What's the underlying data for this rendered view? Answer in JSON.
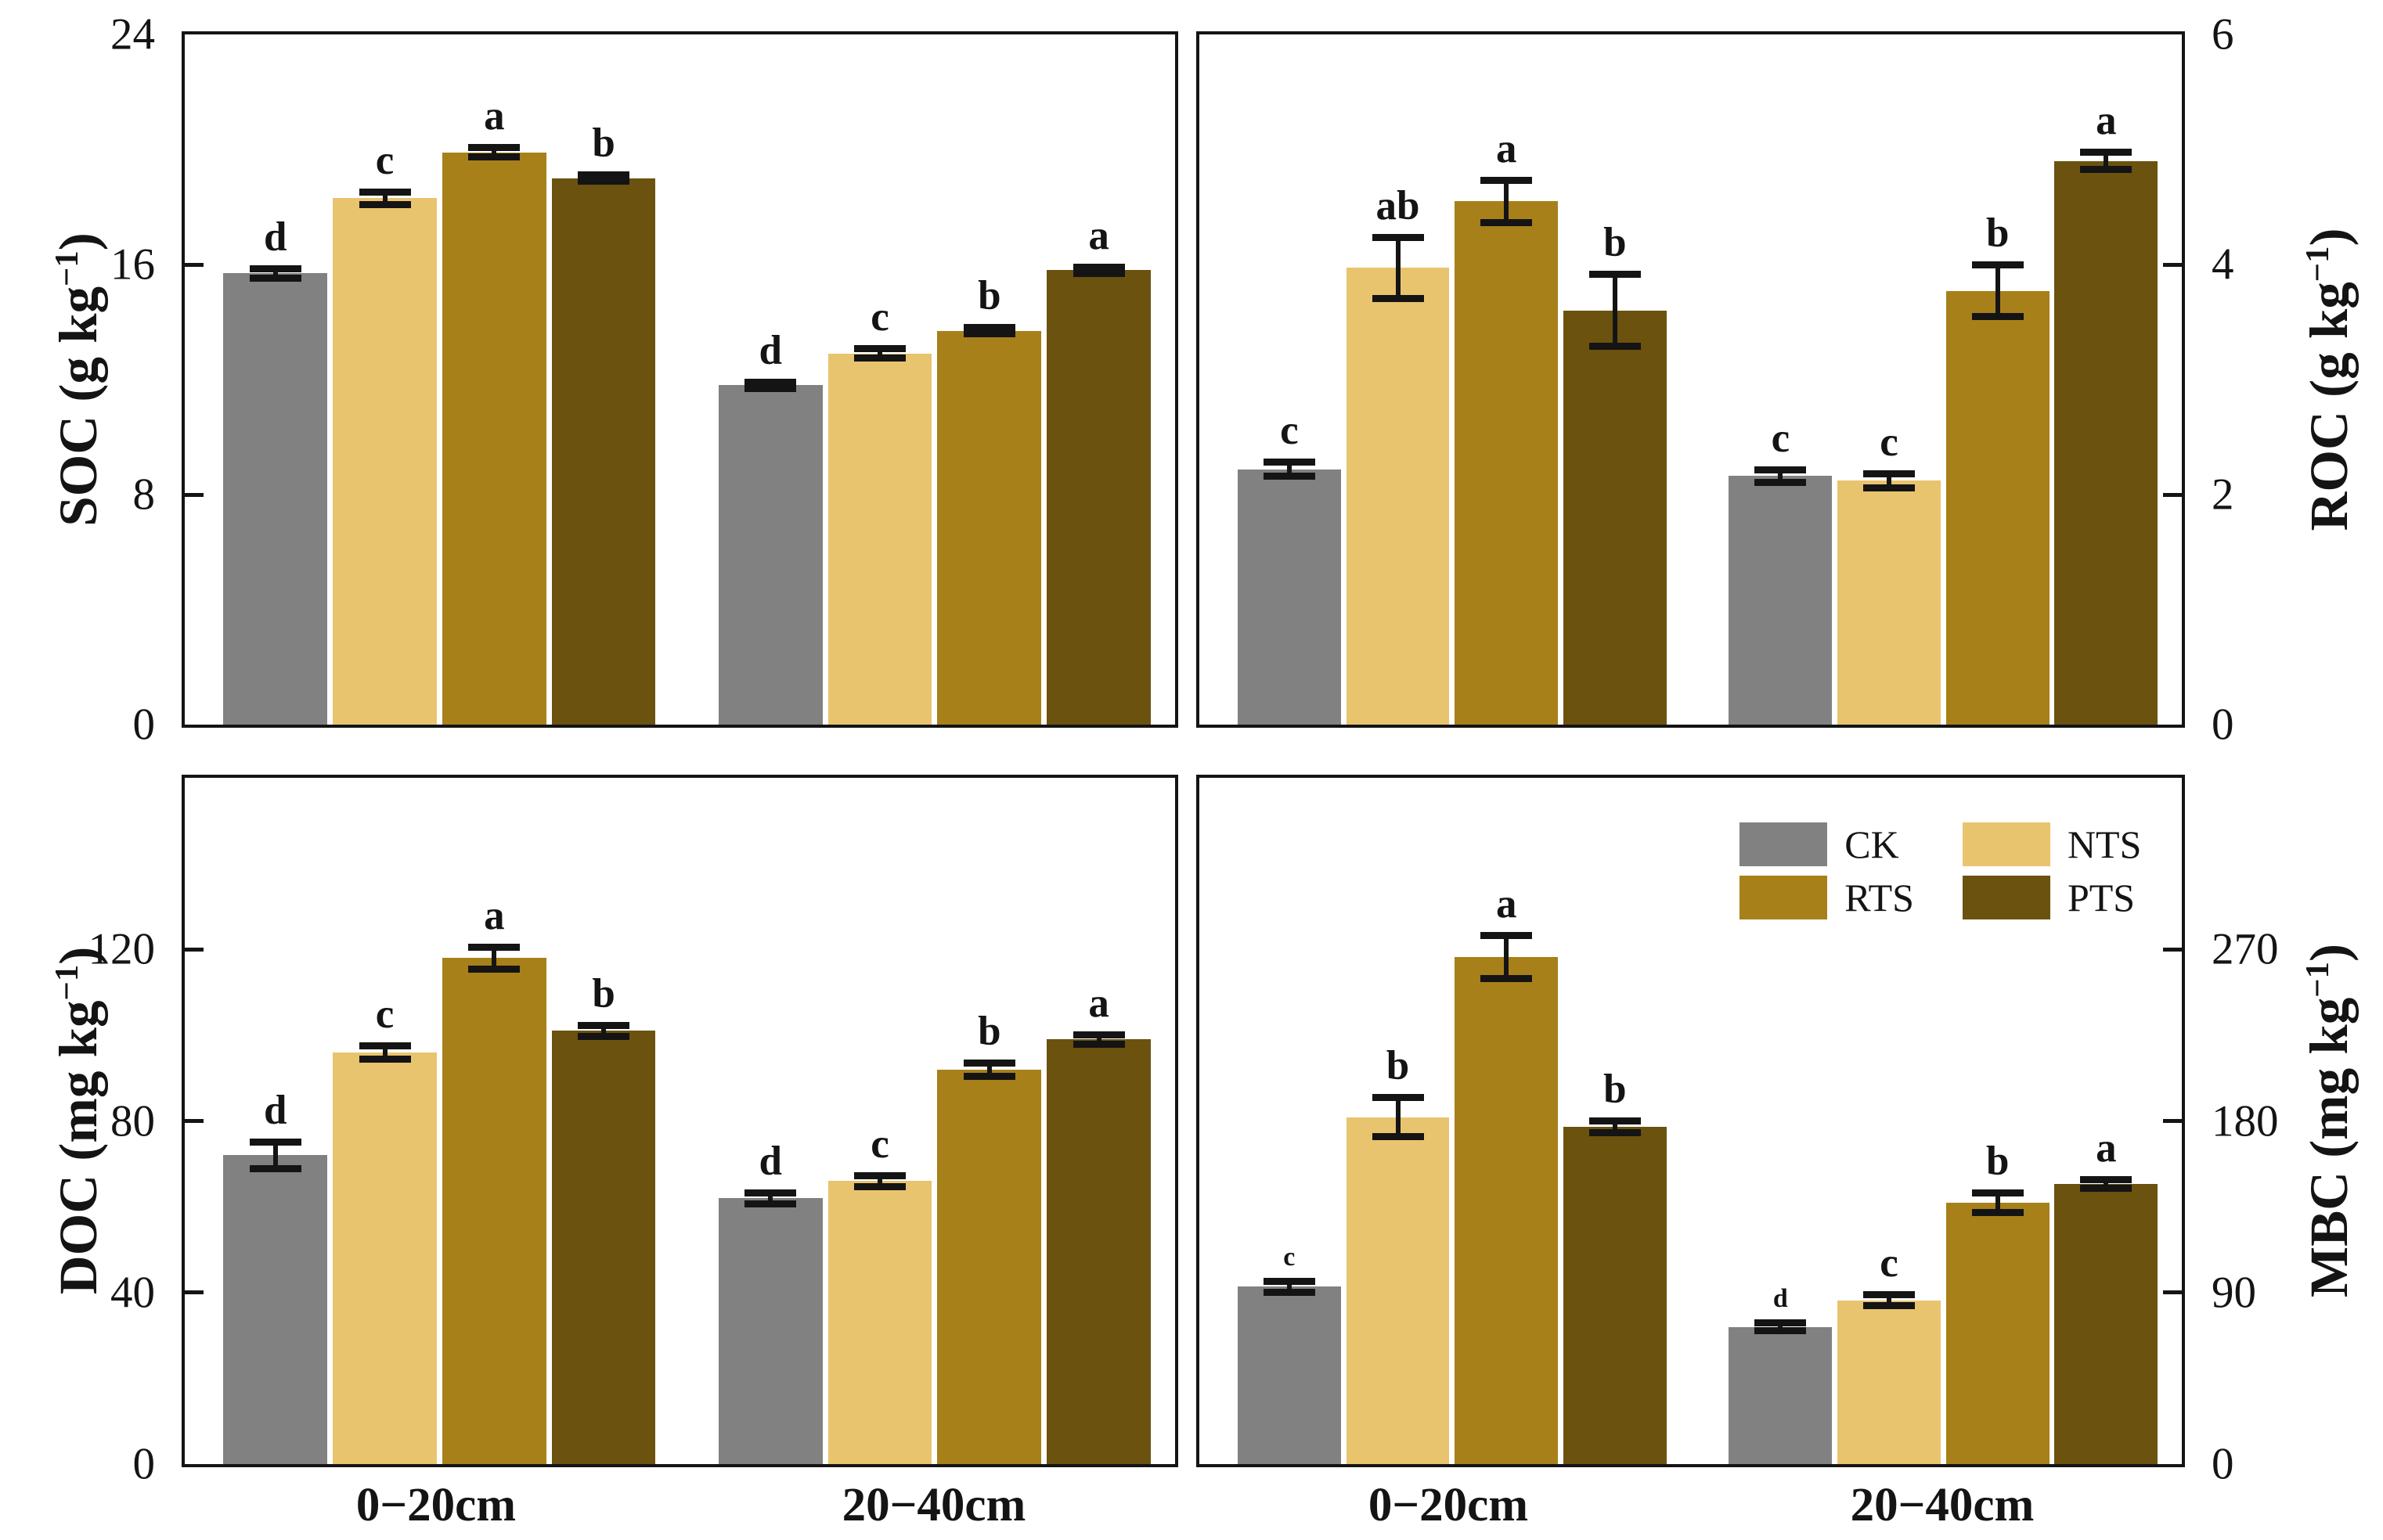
{
  "colors": {
    "CK": "#818181",
    "NTS": "#e9c46e",
    "RTS": "#a8801a",
    "PTS": "#6b520f",
    "axis": "#141414"
  },
  "legend": {
    "items": [
      "CK",
      "NTS",
      "RTS",
      "PTS"
    ]
  },
  "x_axis": {
    "group_labels": [
      "0−20cm",
      "20−40cm"
    ]
  },
  "chart_data": [
    {
      "id": "soc",
      "type": "bar",
      "position": "top-left",
      "axis_side": "left",
      "ylabel": {
        "main": "SOC (g kg",
        "sup": "−1",
        "end": ")"
      },
      "ylim": [
        0,
        24
      ],
      "yticks": [
        0,
        8,
        16,
        24
      ],
      "categories": [
        "0−20cm",
        "20−40cm"
      ],
      "series": [
        {
          "name": "CK",
          "values": [
            15.7,
            11.8
          ],
          "errors": [
            0.15,
            0.1
          ],
          "letters": [
            "d",
            "d"
          ],
          "small_letters": [
            false,
            false
          ]
        },
        {
          "name": "NTS",
          "values": [
            18.3,
            12.9
          ],
          "errors": [
            0.2,
            0.15
          ],
          "letters": [
            "c",
            "c"
          ],
          "small_letters": [
            false,
            false
          ]
        },
        {
          "name": "RTS",
          "values": [
            19.9,
            13.7
          ],
          "errors": [
            0.15,
            0.1
          ],
          "letters": [
            "a",
            "b"
          ],
          "small_letters": [
            false,
            false
          ]
        },
        {
          "name": "PTS",
          "values": [
            19.0,
            15.8
          ],
          "errors": [
            0.1,
            0.1
          ],
          "letters": [
            "b",
            "a"
          ],
          "small_letters": [
            false,
            false
          ]
        }
      ]
    },
    {
      "id": "roc",
      "type": "bar",
      "position": "top-right",
      "axis_side": "right",
      "ylabel": {
        "main": "ROC (g kg",
        "sup": "−1",
        "end": ")"
      },
      "ylim": [
        0,
        6
      ],
      "yticks": [
        0,
        2,
        4,
        6
      ],
      "categories": [
        "0−20cm",
        "20−40cm"
      ],
      "series": [
        {
          "name": "CK",
          "values": [
            2.22,
            2.16
          ],
          "errors": [
            0.06,
            0.05
          ],
          "letters": [
            "c",
            "c"
          ],
          "small_letters": [
            false,
            false
          ]
        },
        {
          "name": "NTS",
          "values": [
            3.97,
            2.12
          ],
          "errors": [
            0.26,
            0.06
          ],
          "letters": [
            "ab",
            "c"
          ],
          "small_letters": [
            false,
            false
          ]
        },
        {
          "name": "RTS",
          "values": [
            4.55,
            3.77
          ],
          "errors": [
            0.18,
            0.22
          ],
          "letters": [
            "a",
            "b"
          ],
          "small_letters": [
            false,
            false
          ]
        },
        {
          "name": "PTS",
          "values": [
            3.6,
            4.9
          ],
          "errors": [
            0.31,
            0.07
          ],
          "letters": [
            "b",
            "a"
          ],
          "small_letters": [
            false,
            false
          ]
        }
      ]
    },
    {
      "id": "doc",
      "type": "bar",
      "position": "bottom-left",
      "axis_side": "left",
      "ylabel": {
        "main": "DOC (mg kg",
        "sup": "−1",
        "end": ")"
      },
      "ylim": [
        0,
        160
      ],
      "yticks": [
        0,
        40,
        80,
        120
      ],
      "categories": [
        "0−20cm",
        "20−40cm"
      ],
      "series": [
        {
          "name": "CK",
          "values": [
            72,
            62
          ],
          "errors": [
            3,
            1.2
          ],
          "letters": [
            "d",
            "d"
          ],
          "small_letters": [
            false,
            false
          ]
        },
        {
          "name": "NTS",
          "values": [
            96,
            66
          ],
          "errors": [
            1.5,
            1.2
          ],
          "letters": [
            "c",
            "c"
          ],
          "small_letters": [
            false,
            false
          ]
        },
        {
          "name": "RTS",
          "values": [
            118,
            92
          ],
          "errors": [
            2.5,
            1.5
          ],
          "letters": [
            "a",
            "b"
          ],
          "small_letters": [
            false,
            false
          ]
        },
        {
          "name": "PTS",
          "values": [
            101,
            99
          ],
          "errors": [
            1.2,
            1
          ],
          "letters": [
            "b",
            "a"
          ],
          "small_letters": [
            false,
            false
          ]
        }
      ]
    },
    {
      "id": "mbc",
      "type": "bar",
      "position": "bottom-right",
      "axis_side": "right",
      "ylabel": {
        "main": "MBC (mg kg",
        "sup": "−1",
        "end": ")"
      },
      "ylim": [
        0,
        360
      ],
      "yticks": [
        0,
        90,
        180,
        270
      ],
      "categories": [
        "0−20cm",
        "20−40cm"
      ],
      "has_legend": true,
      "series": [
        {
          "name": "CK",
          "values": [
            93,
            72
          ],
          "errors": [
            2.5,
            2
          ],
          "letters": [
            "c",
            "d"
          ],
          "small_letters": [
            true,
            true
          ]
        },
        {
          "name": "NTS",
          "values": [
            182,
            86
          ],
          "errors": [
            10,
            2.5
          ],
          "letters": [
            "b",
            "c"
          ],
          "small_letters": [
            false,
            false
          ]
        },
        {
          "name": "RTS",
          "values": [
            266,
            137
          ],
          "errors": [
            11,
            5
          ],
          "letters": [
            "a",
            "b"
          ],
          "small_letters": [
            false,
            false
          ]
        },
        {
          "name": "PTS",
          "values": [
            177,
            147
          ],
          "errors": [
            3,
            2
          ],
          "letters": [
            "b",
            "a"
          ],
          "small_letters": [
            false,
            false
          ]
        }
      ]
    }
  ]
}
